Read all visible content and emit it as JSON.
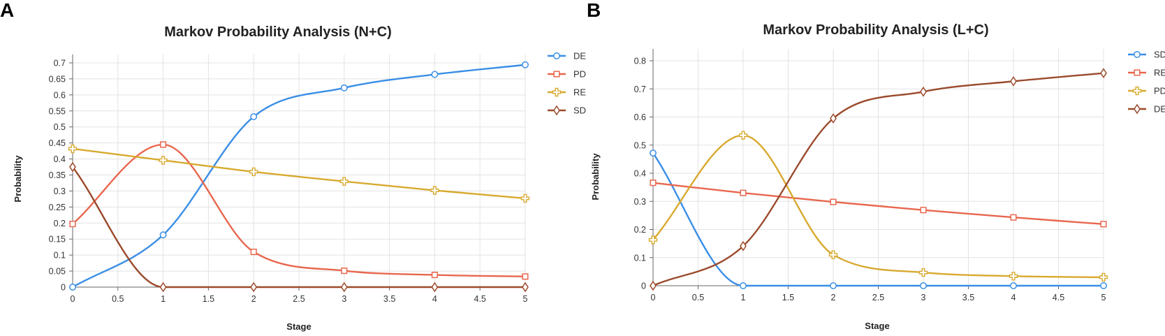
{
  "figure": {
    "panels": [
      "A",
      "B"
    ]
  },
  "chart_data": [
    {
      "type": "line",
      "panel": "A",
      "title": "Markov Probability Analysis (N+C)",
      "xlabel": "Stage",
      "ylabel": "Probability",
      "x": [
        0,
        1,
        2,
        3,
        4,
        5
      ],
      "xlim": [
        0,
        5
      ],
      "ylim": [
        0,
        0.7
      ],
      "xticks": [
        "0",
        "0.5",
        "1",
        "1.5",
        "2",
        "2.5",
        "3",
        "3.5",
        "4",
        "4.5",
        "5"
      ],
      "yticks": [
        "0",
        "0.05",
        "0.1",
        "0.15",
        "0.2",
        "0.25",
        "0.3",
        "0.35",
        "0.4",
        "0.45",
        "0.5",
        "0.55",
        "0.6",
        "0.65",
        "0.7"
      ],
      "grid": true,
      "legend": "right",
      "series": [
        {
          "name": "DE",
          "color": "#3a8ee6",
          "marker": "circle",
          "values": [
            0.0,
            0.163,
            0.532,
            0.622,
            0.664,
            0.694
          ]
        },
        {
          "name": "PD",
          "color": "#e8674e",
          "marker": "square",
          "values": [
            0.197,
            0.445,
            0.11,
            0.051,
            0.038,
            0.033
          ]
        },
        {
          "name": "RE",
          "color": "#d8a92f",
          "marker": "plus",
          "values": [
            0.432,
            0.396,
            0.36,
            0.33,
            0.302,
            0.277
          ]
        },
        {
          "name": "SD",
          "color": "#9b4a2c",
          "marker": "diamond",
          "values": [
            0.375,
            0.0,
            0.0,
            0.0,
            0.0,
            0.0
          ]
        }
      ]
    },
    {
      "type": "line",
      "panel": "B",
      "title": "Markov Probability Analysis (L+C)",
      "xlabel": "Stage",
      "ylabel": "Probability",
      "x": [
        0,
        1,
        2,
        3,
        4,
        5
      ],
      "xlim": [
        0,
        5
      ],
      "ylim": [
        0,
        0.8
      ],
      "xticks": [
        "0",
        "0.5",
        "1",
        "1.5",
        "2",
        "2.5",
        "3",
        "3.5",
        "4",
        "4.5",
        "5"
      ],
      "yticks": [
        "0",
        "0.1",
        "0.2",
        "0.3",
        "0.4",
        "0.5",
        "0.6",
        "0.7",
        "0.8"
      ],
      "grid": true,
      "legend": "right",
      "series": [
        {
          "name": "SD",
          "color": "#3a8ee6",
          "marker": "circle",
          "values": [
            0.472,
            0.0,
            0.0,
            0.0,
            0.0,
            0.0
          ]
        },
        {
          "name": "RE",
          "color": "#e8674e",
          "marker": "square",
          "values": [
            0.366,
            0.33,
            0.298,
            0.269,
            0.243,
            0.219
          ]
        },
        {
          "name": "PD",
          "color": "#d8a92f",
          "marker": "plus",
          "values": [
            0.163,
            0.535,
            0.11,
            0.047,
            0.034,
            0.03
          ]
        },
        {
          "name": "DE",
          "color": "#9b4a2c",
          "marker": "diamond",
          "values": [
            0.0,
            0.141,
            0.595,
            0.69,
            0.727,
            0.756
          ]
        }
      ]
    }
  ]
}
